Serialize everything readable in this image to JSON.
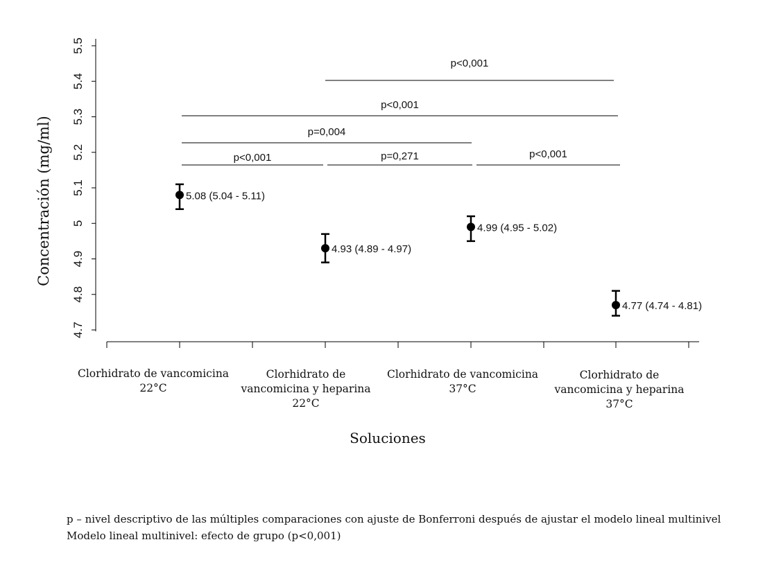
{
  "chart_data": {
    "type": "scatter",
    "ylabel": "Concentración  (mg/ml)",
    "xlabel": "Soluciones",
    "ylim": [
      4.7,
      5.5
    ],
    "yticks": [
      "4.7",
      "4.8",
      "4.9",
      "5",
      "5.1",
      "5.2",
      "5.3",
      "5.4",
      "5.5"
    ],
    "categories": [
      [
        "Clorhidrato de vancomicina",
        "22°C"
      ],
      [
        "Clorhidrato de",
        "vancomicina y heparina",
        "22°C"
      ],
      [
        "Clorhidrato de vancomicina",
        "37°C"
      ],
      [
        "Clorhidrato de",
        "vancomicina y heparina",
        "37°C"
      ]
    ],
    "points": [
      {
        "mean": 5.08,
        "lower": 5.04,
        "upper": 5.11,
        "label": "5.08 (5.04 - 5.11)"
      },
      {
        "mean": 4.93,
        "lower": 4.89,
        "upper": 4.97,
        "label": "4.93 (4.89 - 4.97)"
      },
      {
        "mean": 4.99,
        "lower": 4.95,
        "upper": 5.02,
        "label": "4.99 (4.95 - 5.02)"
      },
      {
        "mean": 4.77,
        "lower": 4.74,
        "upper": 4.81,
        "label": "4.77 (4.74 -  4.81)"
      }
    ],
    "comparisons": [
      {
        "from": 1,
        "to": 3,
        "label": "p<0,001"
      },
      {
        "from": 0,
        "to": 3,
        "label": "p<0,001"
      },
      {
        "from": 0,
        "to": 2,
        "label": "p=0,004"
      },
      {
        "from": 0,
        "to": 1,
        "label": "p<0,001"
      },
      {
        "from": 1,
        "to": 2,
        "label": "p=0,271"
      },
      {
        "from": 2,
        "to": 3,
        "label": "p<0,001"
      }
    ]
  },
  "footnotes": [
    "p – nivel descriptivo de las múltiples comparaciones con ajuste de Bonferroni después de ajustar el modelo lineal multinivel",
    "Modelo lineal multinivel: efecto de grupo (p<0,001)"
  ]
}
